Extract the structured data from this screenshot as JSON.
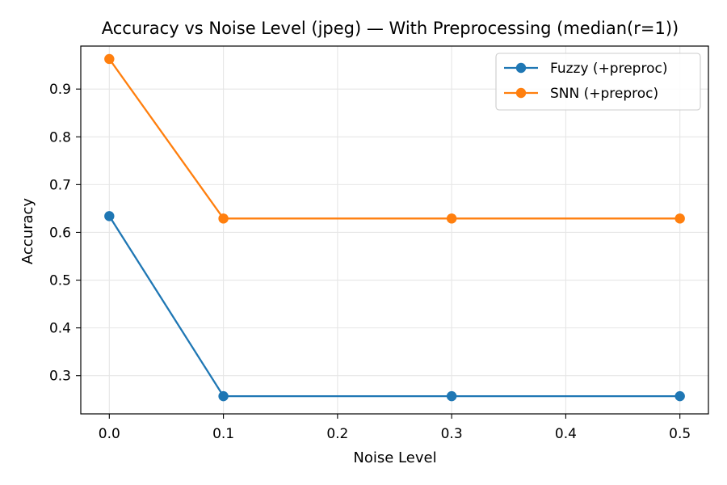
{
  "chart_data": {
    "type": "line",
    "title": "Accuracy vs Noise Level (jpeg) — With Preprocessing (median(r=1))",
    "xlabel": "Noise Level",
    "ylabel": "Accuracy",
    "xlim": [
      -0.025,
      0.525
    ],
    "ylim": [
      0.22,
      0.99
    ],
    "xticks": [
      0.0,
      0.1,
      0.2,
      0.3,
      0.4,
      0.5
    ],
    "xtick_labels": [
      "0.0",
      "0.1",
      "0.2",
      "0.3",
      "0.4",
      "0.5"
    ],
    "yticks": [
      0.3,
      0.4,
      0.5,
      0.6,
      0.7,
      0.8,
      0.9
    ],
    "ytick_labels": [
      "0.3",
      "0.4",
      "0.5",
      "0.6",
      "0.7",
      "0.8",
      "0.9"
    ],
    "grid": true,
    "legend_position": "top-right",
    "series": [
      {
        "name": "Fuzzy (+preproc)",
        "color": "#1f77b4",
        "x": [
          0.0,
          0.1,
          0.3,
          0.5
        ],
        "y": [
          0.634,
          0.257,
          0.257,
          0.257
        ]
      },
      {
        "name": "SNN (+preproc)",
        "color": "#ff7f0e",
        "x": [
          0.0,
          0.1,
          0.3,
          0.5
        ],
        "y": [
          0.963,
          0.629,
          0.629,
          0.629
        ]
      }
    ]
  }
}
